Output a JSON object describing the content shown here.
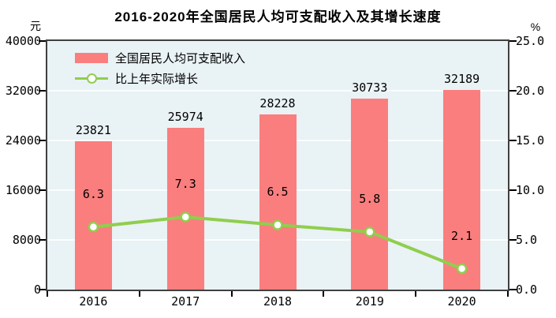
{
  "title": "2016-2020年全国居民人均可支配收入及其增长速度",
  "left_axis_unit": "元",
  "right_axis_unit": "%",
  "legend": {
    "income_label": "全国居民人均可支配收入",
    "growth_label": "比上年实际增长"
  },
  "colors": {
    "bar": "#FA7E7E",
    "line": "#90CE4E",
    "marker_fill": "#FFFFFF",
    "plot_bg": "#E9F2F5",
    "gridline": "#FAFDFE",
    "border": "#404040",
    "text": "#000000"
  },
  "chart_data": {
    "type": "bar",
    "subtype": "bar+line dual axis",
    "title": "2016-2020年全国居民人均可支配收入及其增长速度",
    "categories": [
      "2016",
      "2017",
      "2018",
      "2019",
      "2020"
    ],
    "series": [
      {
        "name": "全国居民人均可支配收入",
        "type": "bar",
        "axis": "left",
        "values": [
          23821,
          25974,
          28228,
          30733,
          32189
        ]
      },
      {
        "name": "比上年实际增长",
        "type": "line",
        "axis": "right",
        "values": [
          6.3,
          7.3,
          6.5,
          5.8,
          2.1
        ]
      }
    ],
    "left_axis": {
      "unit": "元",
      "min": 0,
      "max": 40000,
      "ticks": [
        0,
        8000,
        16000,
        24000,
        32000,
        40000
      ]
    },
    "right_axis": {
      "unit": "%",
      "min": 0,
      "max": 25,
      "tick_labels": [
        "0.0",
        "5.0",
        "10.0",
        "15.0",
        "20.0",
        "25.0"
      ]
    },
    "grid": true,
    "legend_position": "top-left-inside",
    "data_labels": true
  }
}
